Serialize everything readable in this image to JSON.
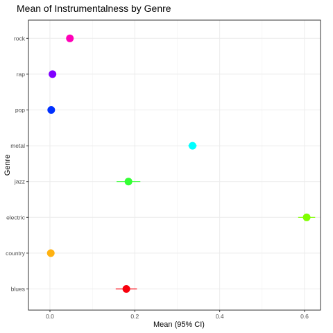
{
  "chart_data": {
    "type": "scatter",
    "title": "Mean of Instrumentalness by Genre",
    "xlabel": "Mean (95% CI)",
    "ylabel": "Genre",
    "xlim": [
      -0.03,
      0.63
    ],
    "x_ticks": [
      0.0,
      0.2,
      0.4,
      0.6
    ],
    "x_tick_labels": [
      "0.0",
      "0.2",
      "0.4",
      "0.6"
    ],
    "categories": [
      "blues",
      "country",
      "electric",
      "jazz",
      "metal",
      "pop",
      "rap",
      "rock"
    ],
    "grid": true,
    "legend": "none",
    "points": [
      {
        "genre": "blues",
        "mean": 0.18,
        "ci_low": 0.155,
        "ci_high": 0.205,
        "color": "#F8000D"
      },
      {
        "genre": "country",
        "mean": 0.002,
        "ci_low": 0.0,
        "ci_high": 0.004,
        "color": "#FFB211"
      },
      {
        "genre": "electric",
        "mean": 0.605,
        "ci_low": 0.585,
        "ci_high": 0.625,
        "color": "#80FF00"
      },
      {
        "genre": "jazz",
        "mean": 0.185,
        "ci_low": 0.157,
        "ci_high": 0.213,
        "color": "#33FF33"
      },
      {
        "genre": "metal",
        "mean": 0.336,
        "ci_low": 0.326,
        "ci_high": 0.346,
        "color": "#00FFFF"
      },
      {
        "genre": "pop",
        "mean": 0.003,
        "ci_low": 0.001,
        "ci_high": 0.005,
        "color": "#0030FF"
      },
      {
        "genre": "rap",
        "mean": 0.006,
        "ci_low": 0.003,
        "ci_high": 0.009,
        "color": "#8000FF"
      },
      {
        "genre": "rock",
        "mean": 0.047,
        "ci_low": 0.04,
        "ci_high": 0.054,
        "color": "#FF00B8"
      }
    ]
  }
}
